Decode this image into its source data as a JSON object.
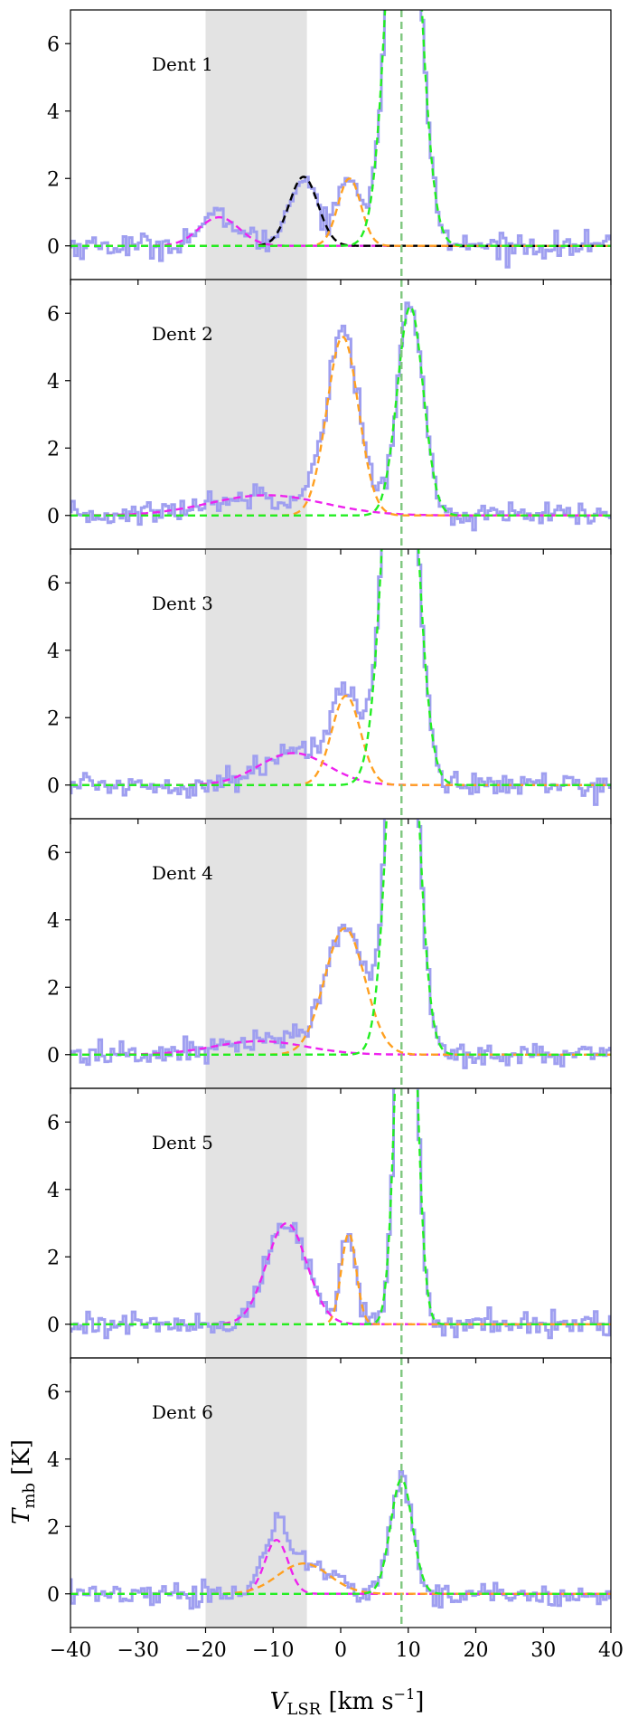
{
  "chart_data": {
    "type": "line",
    "xlabel_main": "V",
    "xlabel_sub": "LSR",
    "xlabel_unit_open": " [km s",
    "xlabel_unit_exp": "−1",
    "xlabel_unit_close": "]",
    "ylabel_main": "T",
    "ylabel_sub": "mb",
    "ylabel_unit": " [K]",
    "xlim": [
      -40,
      40
    ],
    "ylim": [
      -1,
      7
    ],
    "xticks": [
      -40,
      -30,
      -20,
      -10,
      0,
      10,
      20,
      30,
      40
    ],
    "xtick_labels": [
      "−40",
      "−30",
      "−20",
      "−10",
      "0",
      "10",
      "20",
      "30",
      "40"
    ],
    "yticks": [
      0,
      2,
      4,
      6
    ],
    "ytick_labels": [
      "0",
      "2",
      "4",
      "6"
    ],
    "shaded_region": [
      -20,
      -5
    ],
    "vertical_line_x": 9,
    "colors": {
      "spectrum": "#9f9ff0",
      "shade": "#e3e3e3",
      "vline": "#7fc77f",
      "green": "#22ee22",
      "orange": "#ffa020",
      "magenta": "#ee22ee",
      "black": "#000000"
    },
    "panels": [
      {
        "label": "Dent 1",
        "gaussians": [
          {
            "color": "magenta",
            "amp": 0.85,
            "center": -18,
            "fwhm": 7.0
          },
          {
            "color": "black",
            "amp": 2.05,
            "center": -5.5,
            "fwhm": 5.0
          },
          {
            "color": "orange",
            "amp": 2.0,
            "center": 1.3,
            "fwhm": 4.0
          },
          {
            "color": "green",
            "amp": 15.0,
            "center": 9.3,
            "fwhm": 5.2
          }
        ]
      },
      {
        "label": "Dent 2",
        "gaussians": [
          {
            "color": "magenta",
            "amp": 0.6,
            "center": -11,
            "fwhm": 20.0
          },
          {
            "color": "orange",
            "amp": 5.3,
            "center": 0.3,
            "fwhm": 5.5
          },
          {
            "color": "green",
            "amp": 6.2,
            "center": 10.3,
            "fwhm": 4.5
          }
        ]
      },
      {
        "label": "Dent 3",
        "gaussians": [
          {
            "color": "magenta",
            "amp": 0.95,
            "center": -7,
            "fwhm": 12.0
          },
          {
            "color": "orange",
            "amp": 2.65,
            "center": 0.8,
            "fwhm": 5.0
          },
          {
            "color": "green",
            "amp": 15.0,
            "center": 8.8,
            "fwhm": 5.2
          }
        ]
      },
      {
        "label": "Dent 4",
        "gaussians": [
          {
            "color": "magenta",
            "amp": 0.4,
            "center": -12,
            "fwhm": 16.0
          },
          {
            "color": "orange",
            "amp": 3.75,
            "center": 0.6,
            "fwhm": 7.0
          },
          {
            "color": "green",
            "amp": 15.0,
            "center": 9.2,
            "fwhm": 4.6
          }
        ]
      },
      {
        "label": "Dent 5",
        "gaussians": [
          {
            "color": "magenta",
            "amp": 3.0,
            "center": -8,
            "fwhm": 7.0
          },
          {
            "color": "orange",
            "amp": 2.7,
            "center": 1.2,
            "fwhm": 2.6
          },
          {
            "color": "green",
            "amp": 15.0,
            "center": 9.7,
            "fwhm": 3.2
          }
        ]
      },
      {
        "label": "Dent 6",
        "gaussians": [
          {
            "color": "magenta",
            "amp": 1.6,
            "center": -9.5,
            "fwhm": 4.0
          },
          {
            "color": "orange",
            "amp": 0.9,
            "center": -5.5,
            "fwhm": 9.0
          },
          {
            "color": "green",
            "amp": 3.4,
            "center": 9.0,
            "fwhm": 3.8
          }
        ]
      }
    ]
  }
}
